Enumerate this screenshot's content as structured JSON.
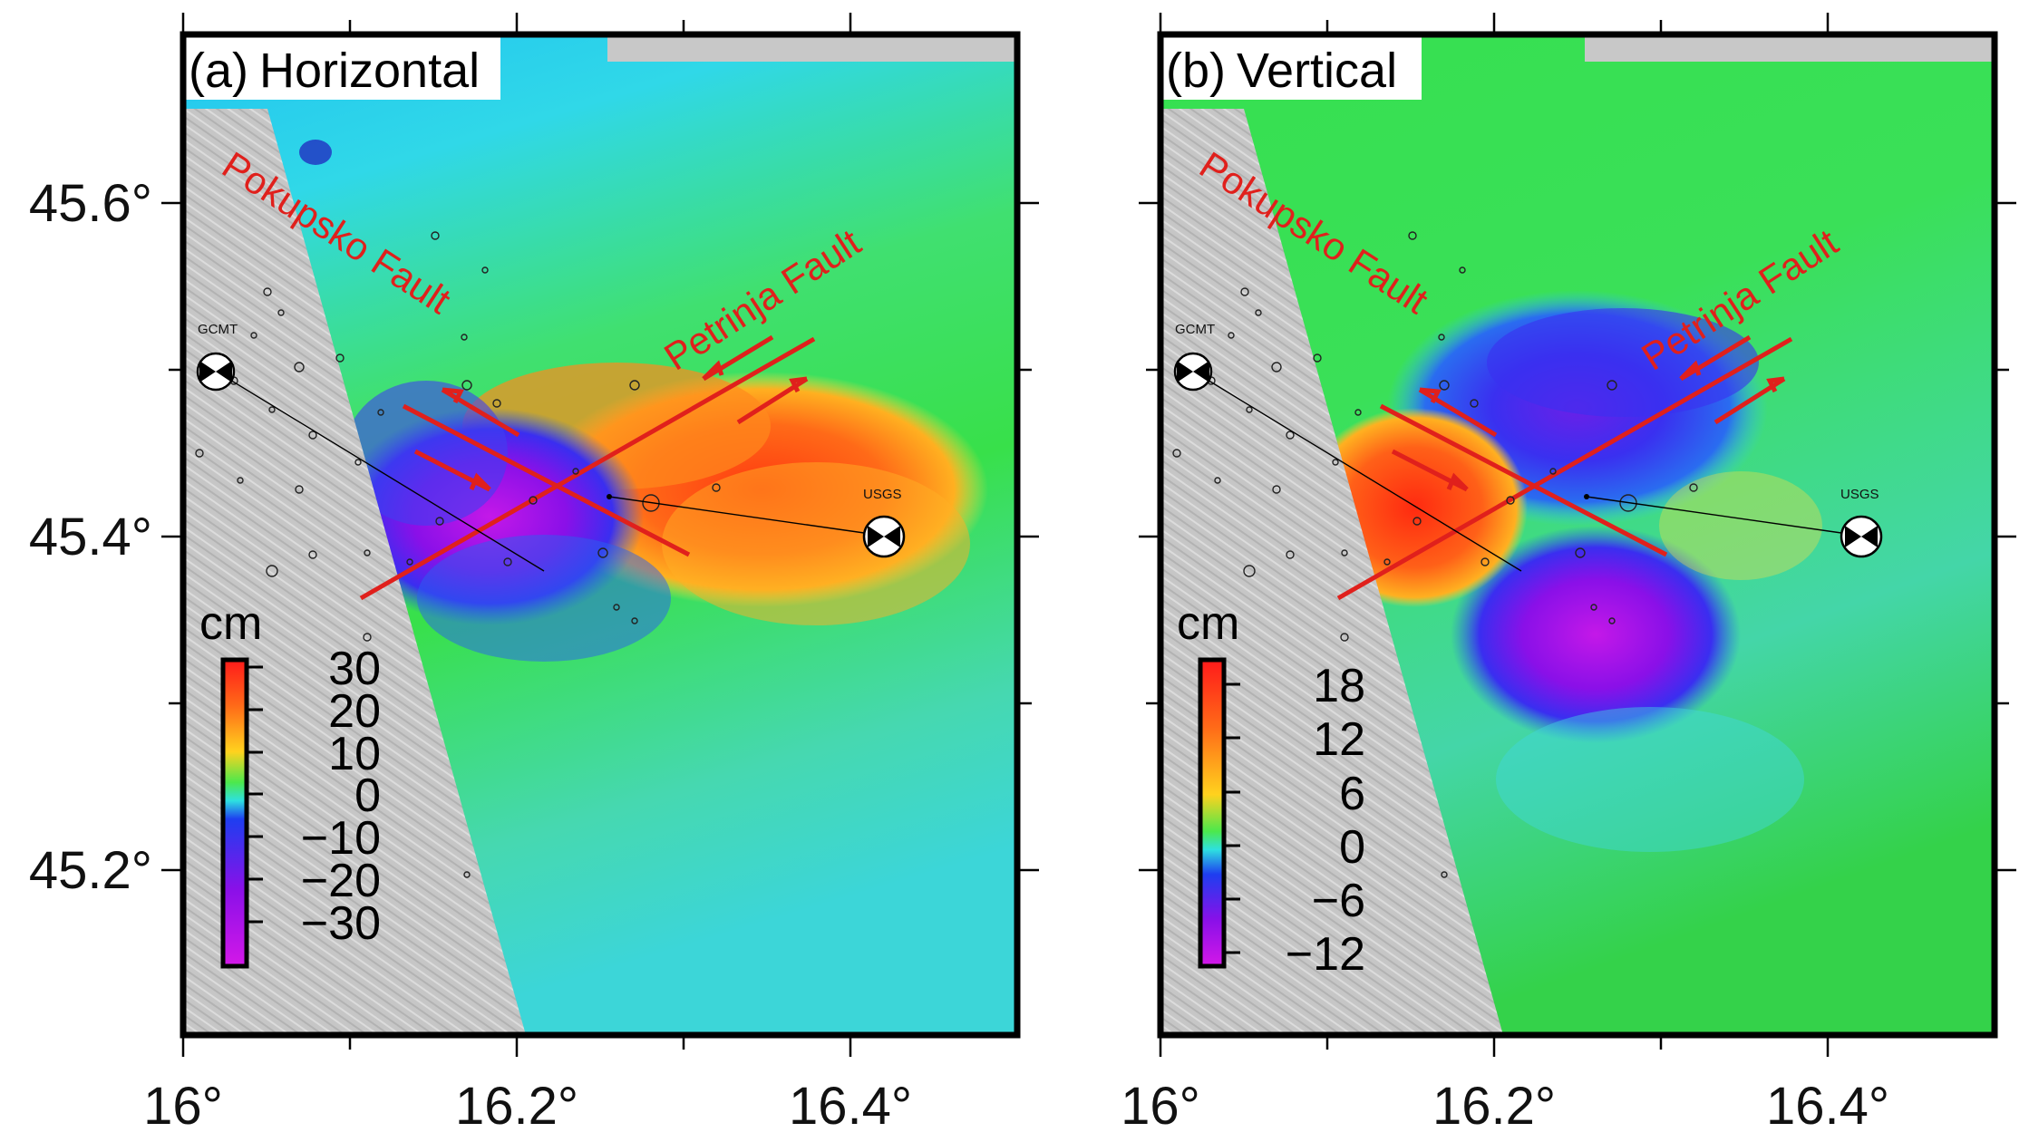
{
  "figure": {
    "axes": {
      "x_ticks": [
        "16°",
        "16.2°",
        "16.4°"
      ],
      "y_ticks": [
        "45.6°",
        "45.4°",
        "45.2°"
      ]
    },
    "panels": [
      {
        "id": "a",
        "title_letter": "(a)",
        "title_text": "Horizontal",
        "faults": [
          "Pokupsko Fault",
          "Petrinja Fault"
        ],
        "mechanisms": [
          "GCMT",
          "USGS"
        ],
        "colorbar": {
          "unit": "cm",
          "labels": [
            "30",
            "20",
            "10",
            "0",
            "−10",
            "−20",
            "−30"
          ]
        }
      },
      {
        "id": "b",
        "title_letter": "(b)",
        "title_text": "Vertical",
        "faults": [
          "Pokupsko Fault",
          "Petrinja Fault"
        ],
        "mechanisms": [
          "GCMT",
          "USGS"
        ],
        "colorbar": {
          "unit": "cm",
          "labels": [
            "18",
            "12",
            "6",
            "0",
            "−6",
            "−12"
          ]
        }
      }
    ],
    "colors": {
      "fault_red": "#e0201c",
      "terrain_gray": "#c8c8c8",
      "background_green": "#38e04a",
      "cyan": "#34d8e8"
    }
  }
}
